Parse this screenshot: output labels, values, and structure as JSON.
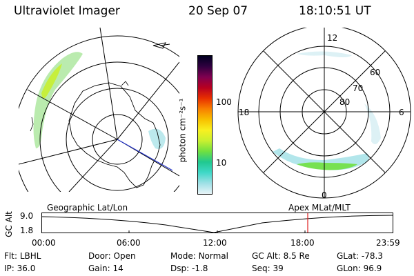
{
  "header": {
    "title": "Ultraviolet Imager",
    "date": "20 Sep 07",
    "time": "18:10:51 UT"
  },
  "colorbar": {
    "unit_label": "photon cm⁻²s⁻¹",
    "ticks": [
      "100",
      "10"
    ],
    "stops": [
      "#e8f4f8",
      "#9fe0e6",
      "#40d8c8",
      "#20c890",
      "#70e040",
      "#c8f030",
      "#f8f020",
      "#f8c000",
      "#f88000",
      "#e83000",
      "#b80020",
      "#800050",
      "#300040",
      "#000020"
    ]
  },
  "left_map": {
    "name": "geographic-map",
    "aurora_color": "#8ee06a"
  },
  "right_map": {
    "clock_labels": {
      "top": "12",
      "left": "18",
      "right": "6",
      "bottom": "0"
    },
    "lat_labels": [
      "60",
      "70",
      "80"
    ]
  },
  "timeline": {
    "left_title": "Geographic Lat/Lon",
    "right_title": "Apex MLat/MLT",
    "y_axis_label": "GC Alt",
    "y_ticks": [
      "9.0",
      "1.8"
    ],
    "x_ticks": [
      "00:00",
      "06:00",
      "12:00",
      "18:00",
      "23:59"
    ],
    "current_marker_color": "#e02020"
  },
  "footer": {
    "row1": [
      {
        "label": "Flt:",
        "value": "LBHL"
      },
      {
        "label": "Door:",
        "value": "Open"
      },
      {
        "label": "Mode:",
        "value": "Normal"
      },
      {
        "label": "GC Alt:",
        "value": "8.5 Re"
      },
      {
        "label": "GLat:",
        "value": "-78.3"
      }
    ],
    "row2": [
      {
        "label": "IP:",
        "value": "36.0"
      },
      {
        "label": "Gain:",
        "value": "14"
      },
      {
        "label": "Dsp:",
        "value": "-1.8"
      },
      {
        "label": "Seq:",
        "value": "39"
      },
      {
        "label": "GLon:",
        "value": "96.9"
      }
    ]
  }
}
